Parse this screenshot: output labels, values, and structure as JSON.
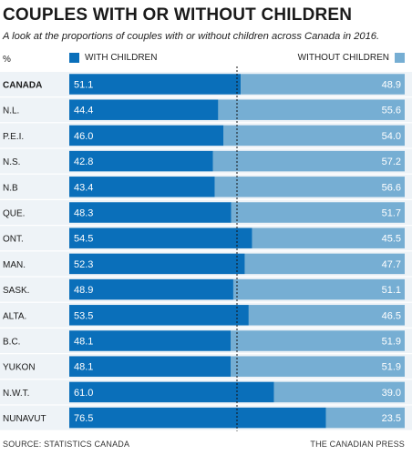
{
  "header": {
    "title": "COUPLES WITH OR WITHOUT CHILDREN",
    "subtitle": "A look at the proportions of couples with or without children across Canada in 2016.",
    "unit": "%"
  },
  "footer": {
    "source": "SOURCE: STATISTICS CANADA",
    "credit": "THE CANADIAN PRESS"
  },
  "colors": {
    "with_children": "#0a6fba",
    "without_children": "#76aed3",
    "background": "#ffffff",
    "row_band": "#eef3f7"
  },
  "chart_data": {
    "type": "bar",
    "orientation": "horizontal",
    "stacked": true,
    "categories": [
      "CANADA",
      "N.L.",
      "P.E.I.",
      "N.S.",
      "N.B",
      "QUE.",
      "ONT.",
      "MAN.",
      "SASK.",
      "ALTA.",
      "B.C.",
      "YUKON",
      "N.W.T.",
      "NUNAVUT"
    ],
    "series": [
      {
        "name": "WITH CHILDREN",
        "color": "#0a6fba",
        "values": [
          51.1,
          44.4,
          46.0,
          42.8,
          43.4,
          48.3,
          54.5,
          52.3,
          48.9,
          53.5,
          48.1,
          48.1,
          61.0,
          76.5
        ]
      },
      {
        "name": "WITHOUT CHILDREN",
        "color": "#76aed3",
        "values": [
          48.9,
          55.6,
          54.0,
          57.2,
          56.6,
          51.7,
          45.5,
          47.7,
          51.1,
          46.5,
          51.9,
          51.9,
          39.0,
          23.5
        ]
      }
    ],
    "value_labels": [
      [
        "51.1",
        "44.4",
        "46.0",
        "42.8",
        "43.4",
        "48.3",
        "54.5",
        "52.3",
        "48.9",
        "53.5",
        "48.1",
        "48.1",
        "61.0",
        "76.5"
      ],
      [
        "48.9",
        "55.6",
        "54.0",
        "57.2",
        "56.6",
        "51.7",
        "45.5",
        "47.7",
        "51.1",
        "46.5",
        "51.9",
        "51.9",
        "39.0",
        "23.5"
      ]
    ],
    "xlim": [
      0,
      100
    ],
    "reference_line": 50,
    "bold_categories": [
      "CANADA"
    ]
  }
}
